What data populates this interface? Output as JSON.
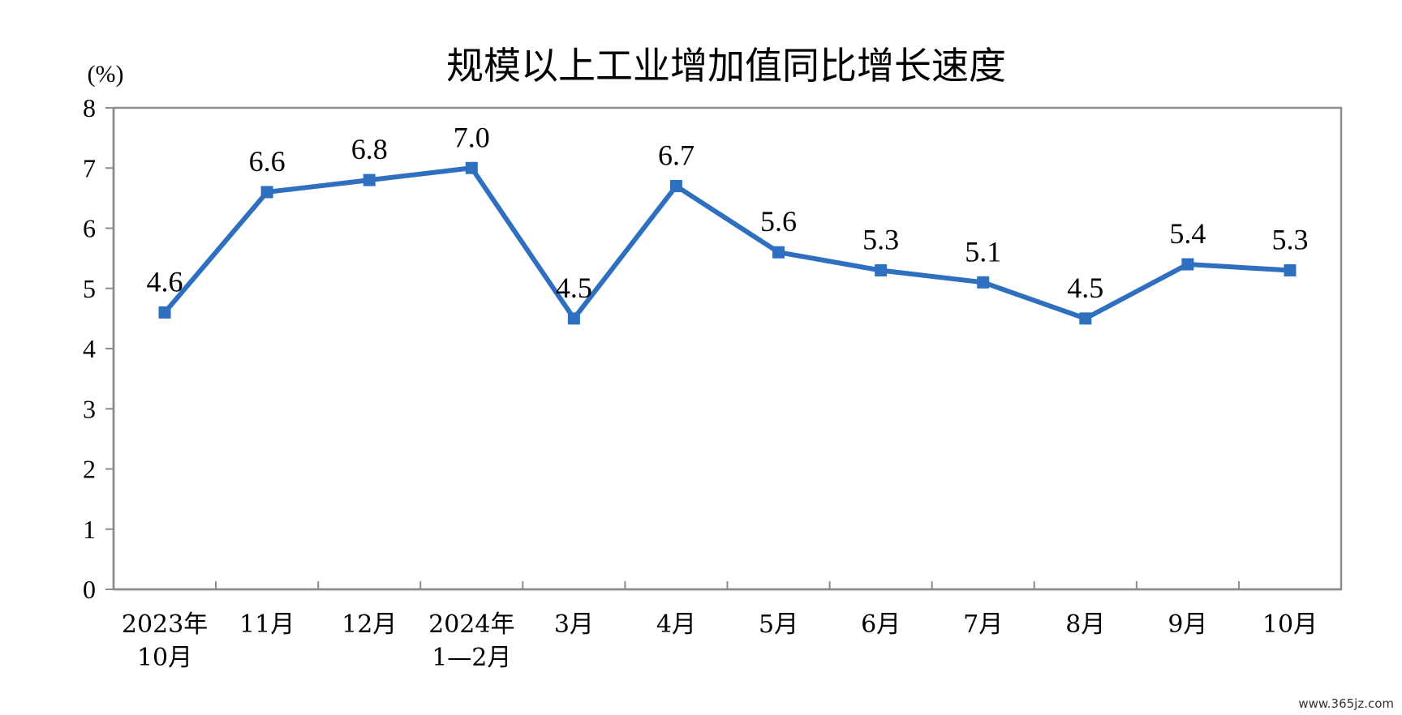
{
  "chart_data": {
    "type": "line",
    "title": "规模以上工业增加值同比增长速度",
    "unit_label": "(%)",
    "categories": [
      [
        "2023年",
        "10月"
      ],
      [
        "11月"
      ],
      [
        "12月"
      ],
      [
        "2024年",
        "1—2月"
      ],
      [
        "3月"
      ],
      [
        "4月"
      ],
      [
        "5月"
      ],
      [
        "6月"
      ],
      [
        "7月"
      ],
      [
        "8月"
      ],
      [
        "9月"
      ],
      [
        "10月"
      ]
    ],
    "series": [
      {
        "values": [
          4.6,
          6.6,
          6.8,
          7.0,
          4.5,
          6.7,
          5.6,
          5.3,
          5.1,
          4.5,
          5.4,
          5.3
        ],
        "data_labels": [
          "4.6",
          "6.6",
          "6.8",
          "7.0",
          "4.5",
          "6.7",
          "5.6",
          "5.3",
          "5.1",
          "4.5",
          "5.4",
          "5.3"
        ]
      }
    ],
    "ylim": [
      0,
      8
    ],
    "yticks": [
      0,
      1,
      2,
      3,
      4,
      5,
      6,
      7,
      8
    ],
    "grid": false,
    "line_color": "#2E6FBF"
  },
  "watermark": "www.365jz.com"
}
